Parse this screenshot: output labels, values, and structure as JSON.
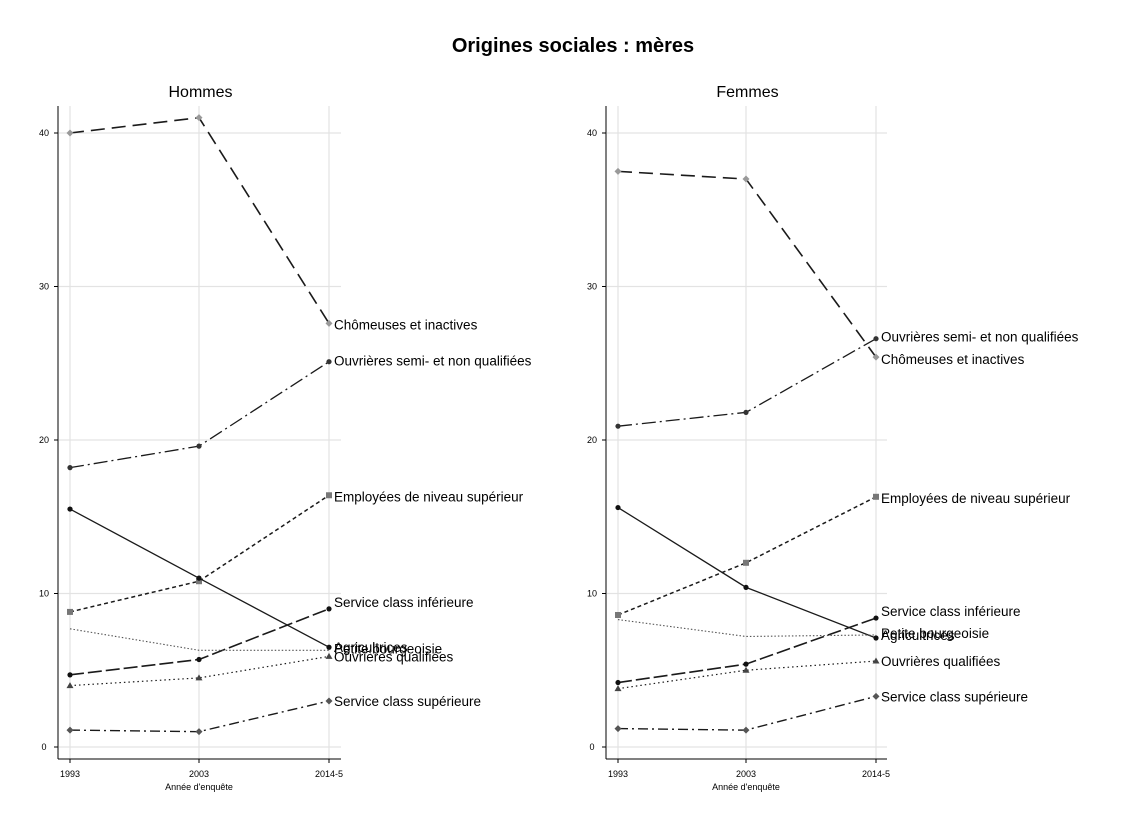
{
  "title": "Origines sociales : mères",
  "chart_data": [
    {
      "type": "line",
      "title": "Hommes",
      "xlabel": "Année d'enquête",
      "ylabel": "",
      "x": [
        "1993",
        "2003",
        "2014-5"
      ],
      "ylim": [
        0,
        40
      ],
      "yticks": [
        "0",
        "10",
        "20",
        "30",
        "40"
      ],
      "grid": true,
      "legend": "labels at line ends",
      "series": [
        {
          "name": "Chômeuses et inactives",
          "values": [
            40,
            41,
            27.6
          ]
        },
        {
          "name": "Ouvrières semi- et non qualifiées",
          "values": [
            18.2,
            19.6,
            25.1
          ]
        },
        {
          "name": "Employées de niveau supérieur",
          "values": [
            8.8,
            10.8,
            16.4
          ]
        },
        {
          "name": "Service class inférieure",
          "values": [
            4.7,
            5.7,
            9.0
          ]
        },
        {
          "name": "Agricultrices",
          "values": [
            15.5,
            11.0,
            6.5
          ]
        },
        {
          "name": "Petite bourgeoisie",
          "values": [
            7.7,
            6.3,
            6.3
          ]
        },
        {
          "name": "Ouvrières qualifiées",
          "values": [
            4.0,
            4.5,
            5.9
          ]
        },
        {
          "name": "Service class supérieure",
          "values": [
            1.1,
            1.0,
            3.0
          ]
        }
      ]
    },
    {
      "type": "line",
      "title": "Femmes",
      "xlabel": "Année d'enquête",
      "ylabel": "",
      "x": [
        "1993",
        "2003",
        "2014-5"
      ],
      "ylim": [
        0,
        40
      ],
      "yticks": [
        "0",
        "10",
        "20",
        "30",
        "40"
      ],
      "grid": true,
      "legend": "labels at line ends",
      "series": [
        {
          "name": "Chômeuses et inactives",
          "values": [
            37.5,
            37.0,
            25.4
          ]
        },
        {
          "name": "Ouvrières semi- et non qualifiées",
          "values": [
            20.9,
            21.8,
            26.6
          ]
        },
        {
          "name": "Employées de niveau supérieur",
          "values": [
            8.6,
            12.0,
            16.3
          ]
        },
        {
          "name": "Service class inférieure",
          "values": [
            4.2,
            5.4,
            8.4
          ]
        },
        {
          "name": "Agricultrices",
          "values": [
            15.6,
            10.4,
            7.1
          ]
        },
        {
          "name": "Petite bourgeoisie",
          "values": [
            8.3,
            7.2,
            7.3
          ]
        },
        {
          "name": "Ouvrières qualifiées",
          "values": [
            3.8,
            5.0,
            5.6
          ]
        },
        {
          "name": "Service class supérieure",
          "values": [
            1.2,
            1.1,
            3.3
          ]
        }
      ]
    }
  ],
  "series_styles": [
    {
      "color": "#1a1a1a",
      "dash": "14,7",
      "width": 1.6,
      "marker": "diamond",
      "marker_color": "#999999"
    },
    {
      "color": "#1a1a1a",
      "dash": "14,4,2,4",
      "width": 1.3,
      "marker": "circle",
      "marker_color": "#333333"
    },
    {
      "color": "#1a1a1a",
      "dash": "4,3",
      "width": 1.5,
      "marker": "square",
      "marker_color": "#777777"
    },
    {
      "color": "#1a1a1a",
      "dash": "14,4",
      "width": 1.6,
      "marker": "circle",
      "marker_color": "#111111"
    },
    {
      "color": "#1a1a1a",
      "dash": "",
      "width": 1.3,
      "marker": "circle",
      "marker_color": "#111111"
    },
    {
      "color": "#555555",
      "dash": "1.5,2",
      "width": 1.1,
      "marker": "none",
      "marker_color": "#555555"
    },
    {
      "color": "#1a1a1a",
      "dash": "1.5,3",
      "width": 1.2,
      "marker": "triangle",
      "marker_color": "#444444"
    },
    {
      "color": "#1a1a1a",
      "dash": "10,4,2,4",
      "width": 1.4,
      "marker": "diamond",
      "marker_color": "#555555"
    }
  ]
}
